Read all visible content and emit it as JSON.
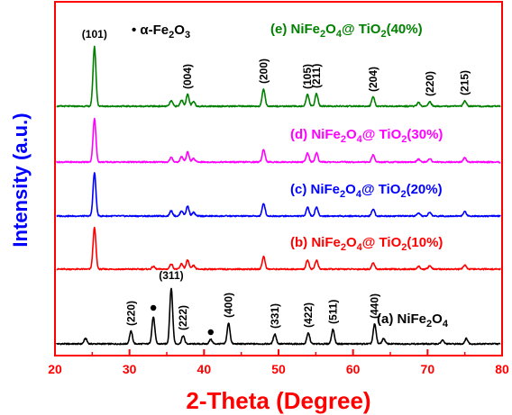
{
  "chart_data": {
    "type": "line",
    "title": "",
    "xlabel": "2-Theta (Degree)",
    "ylabel": "Intensity (a.u.)",
    "xlim": [
      20,
      80
    ],
    "xticks": [
      "20",
      "30",
      "40",
      "50",
      "60",
      "70",
      "80"
    ],
    "grid": false,
    "legend": "none",
    "colors": {
      "axes": "#ff0000",
      "xlabel": "#ff0000",
      "ylabel": "#0000ff",
      "label_text": "#000000"
    },
    "marker_legend": {
      "symbol": "•",
      "text_parts": {
        "greek": "α-Fe",
        "sub": "2",
        "mid": "O",
        "sub2": "3"
      }
    },
    "series": [
      {
        "name": "(a) NiFe2O4",
        "label_parts": {
          "prefix": "(a) NiFe",
          "sub1": "2",
          "mid": "O",
          "sub2": "4"
        },
        "color": "#000000",
        "peaks": [
          {
            "x": 24.1,
            "h": 6
          },
          {
            "x": 30.2,
            "h": 14
          },
          {
            "x": 33.2,
            "h": 30
          },
          {
            "x": 35.6,
            "h": 62
          },
          {
            "x": 37.2,
            "h": 9
          },
          {
            "x": 40.9,
            "h": 5
          },
          {
            "x": 43.3,
            "h": 23
          },
          {
            "x": 49.5,
            "h": 11
          },
          {
            "x": 54.0,
            "h": 12
          },
          {
            "x": 57.3,
            "h": 16
          },
          {
            "x": 62.9,
            "h": 22
          },
          {
            "x": 64.1,
            "h": 6
          },
          {
            "x": 72.0,
            "h": 4
          },
          {
            "x": 75.2,
            "h": 6
          }
        ]
      },
      {
        "name": "(b) NiFe2O4@ TiO2(10%)",
        "label_parts": {
          "prefix": "(b) NiFe",
          "sub1": "2",
          "mid": "O",
          "sub2": "4",
          "mid2": "@ TiO",
          "sub3": "2",
          "suffix": "(10%)"
        },
        "color": "#ff0000",
        "peaks": [
          {
            "x": 25.3,
            "h": 46
          },
          {
            "x": 33.2,
            "h": 3
          },
          {
            "x": 35.6,
            "h": 6
          },
          {
            "x": 37.0,
            "h": 6
          },
          {
            "x": 37.8,
            "h": 10
          },
          {
            "x": 38.6,
            "h": 4
          },
          {
            "x": 48.0,
            "h": 14
          },
          {
            "x": 53.9,
            "h": 10
          },
          {
            "x": 55.1,
            "h": 10
          },
          {
            "x": 62.7,
            "h": 7
          },
          {
            "x": 68.8,
            "h": 3
          },
          {
            "x": 70.3,
            "h": 4
          },
          {
            "x": 75.0,
            "h": 5
          }
        ]
      },
      {
        "name": "(c) NiFe2O4@ TiO2(20%)",
        "label_parts": {
          "prefix": "(c) NiFe",
          "sub1": "2",
          "mid": "O",
          "sub2": "4",
          "mid2": "@ TiO",
          "sub3": "2",
          "suffix": "(20%)"
        },
        "color": "#0000ff",
        "peaks": [
          {
            "x": 25.3,
            "h": 48
          },
          {
            "x": 35.6,
            "h": 6
          },
          {
            "x": 37.0,
            "h": 6
          },
          {
            "x": 37.8,
            "h": 11
          },
          {
            "x": 38.6,
            "h": 4
          },
          {
            "x": 48.0,
            "h": 14
          },
          {
            "x": 53.9,
            "h": 10
          },
          {
            "x": 55.1,
            "h": 10
          },
          {
            "x": 62.7,
            "h": 8
          },
          {
            "x": 68.8,
            "h": 3
          },
          {
            "x": 70.3,
            "h": 4
          },
          {
            "x": 75.0,
            "h": 5
          }
        ]
      },
      {
        "name": "(d) NiFe2O4@ TiO2(30%)",
        "label_parts": {
          "prefix": "(d) NiFe",
          "sub1": "2",
          "mid": "O",
          "sub2": "4",
          "mid2": "@ TiO",
          "sub3": "2",
          "suffix": "(30%)"
        },
        "color": "#ff00ff",
        "peaks": [
          {
            "x": 25.3,
            "h": 48
          },
          {
            "x": 35.6,
            "h": 5
          },
          {
            "x": 37.0,
            "h": 6
          },
          {
            "x": 37.8,
            "h": 11
          },
          {
            "x": 38.6,
            "h": 4
          },
          {
            "x": 48.0,
            "h": 14
          },
          {
            "x": 53.9,
            "h": 10
          },
          {
            "x": 55.1,
            "h": 10
          },
          {
            "x": 62.7,
            "h": 8
          },
          {
            "x": 68.8,
            "h": 3
          },
          {
            "x": 70.3,
            "h": 4
          },
          {
            "x": 75.0,
            "h": 5
          }
        ]
      },
      {
        "name": "(e) NiFe2O4@ TiO2(40%)",
        "label_parts": {
          "prefix": "(e) NiFe",
          "sub1": "2",
          "mid": "O",
          "sub2": "4",
          "mid2": "@ TiO",
          "sub3": "2",
          "suffix": "(40%)"
        },
        "color": "#008000",
        "peaks": [
          {
            "x": 25.3,
            "h": 66
          },
          {
            "x": 35.6,
            "h": 6
          },
          {
            "x": 37.0,
            "h": 7
          },
          {
            "x": 37.8,
            "h": 13
          },
          {
            "x": 38.6,
            "h": 5
          },
          {
            "x": 48.0,
            "h": 19
          },
          {
            "x": 53.9,
            "h": 13
          },
          {
            "x": 55.1,
            "h": 14
          },
          {
            "x": 62.7,
            "h": 10
          },
          {
            "x": 68.8,
            "h": 4
          },
          {
            "x": 70.3,
            "h": 5
          },
          {
            "x": 75.0,
            "h": 6
          }
        ]
      }
    ],
    "peak_labels": [
      {
        "series": 4,
        "x": 25.3,
        "text": "(101)",
        "rotate": false
      },
      {
        "series": 4,
        "x": 37.8,
        "text": "(004)",
        "rotate": true
      },
      {
        "series": 4,
        "x": 48.0,
        "text": "(200)",
        "rotate": true
      },
      {
        "series": 4,
        "x": 53.9,
        "text": "(105)",
        "rotate": true
      },
      {
        "series": 4,
        "x": 55.1,
        "text": "(211)",
        "rotate": true
      },
      {
        "series": 4,
        "x": 62.7,
        "text": "(204)",
        "rotate": true
      },
      {
        "series": 4,
        "x": 70.3,
        "text": "(220)",
        "rotate": true
      },
      {
        "series": 4,
        "x": 75.0,
        "text": "(215)",
        "rotate": true
      },
      {
        "series": 0,
        "x": 30.2,
        "text": "(220)",
        "rotate": true
      },
      {
        "series": 0,
        "x": 35.6,
        "text": "(311)",
        "rotate": false
      },
      {
        "series": 0,
        "x": 37.2,
        "text": "(222)",
        "rotate": true
      },
      {
        "series": 0,
        "x": 43.3,
        "text": "(400)",
        "rotate": true
      },
      {
        "series": 0,
        "x": 49.5,
        "text": "(331)",
        "rotate": true
      },
      {
        "series": 0,
        "x": 54.0,
        "text": "(422)",
        "rotate": true
      },
      {
        "series": 0,
        "x": 57.3,
        "text": "(511)",
        "rotate": true
      },
      {
        "series": 0,
        "x": 62.9,
        "text": "(440)",
        "rotate": true
      }
    ],
    "hematite_markers": [
      {
        "series": 0,
        "x": 33.2
      },
      {
        "series": 0,
        "x": 40.9
      }
    ]
  }
}
